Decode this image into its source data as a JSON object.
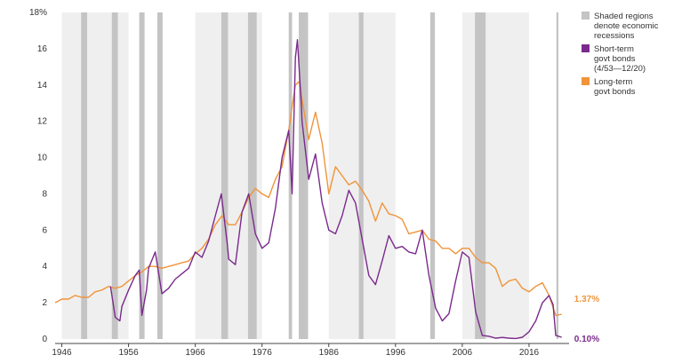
{
  "chart_data": {
    "type": "line",
    "x_axis": {
      "range": [
        1945,
        2022
      ],
      "ticks": [
        1946,
        1956,
        1966,
        1976,
        1986,
        1996,
        2006,
        2016
      ]
    },
    "y_axis": {
      "range": [
        0,
        18
      ],
      "ticks": [
        0,
        2,
        4,
        6,
        8,
        10,
        12,
        14,
        16,
        18
      ],
      "tick_labels": [
        "0",
        "2",
        "4",
        "6",
        "8",
        "10",
        "12",
        "14",
        "16",
        "18%"
      ]
    },
    "grid": false,
    "alternating_decade_bands": [
      [
        1946,
        1956
      ],
      [
        1966,
        1976
      ],
      [
        1986,
        1996
      ],
      [
        2006,
        2016
      ]
    ],
    "colors": {
      "band": "#efefef",
      "recession": "#c4c4c4",
      "short_term": "#7a2a8c",
      "long_term": "#f0943a"
    },
    "legend": {
      "position": "top-right",
      "items": [
        {
          "key": "recession",
          "label_lines": [
            "Shaded regions",
            "denote economic",
            "recessions"
          ]
        },
        {
          "key": "short_term",
          "label_lines": [
            "Short-term",
            "govt bonds",
            "(4/53—12/20)"
          ]
        },
        {
          "key": "long_term",
          "label_lines": [
            "Long-term",
            "govt bonds"
          ]
        }
      ]
    },
    "recessions": [
      [
        1948.9,
        1949.8
      ],
      [
        1953.5,
        1954.4
      ],
      [
        1957.6,
        1958.4
      ],
      [
        1960.3,
        1961.1
      ],
      [
        1969.9,
        1970.9
      ],
      [
        1973.9,
        1975.2
      ],
      [
        1980.0,
        1980.5
      ],
      [
        1981.5,
        1982.9
      ],
      [
        1990.5,
        1991.2
      ],
      [
        2001.2,
        2001.9
      ],
      [
        2007.9,
        2009.5
      ],
      [
        2020.1,
        2020.4
      ]
    ],
    "series": [
      {
        "key": "long_term",
        "end_label": "1.37%",
        "points": [
          [
            1945,
            2.0
          ],
          [
            1946,
            2.2
          ],
          [
            1947,
            2.2
          ],
          [
            1948,
            2.4
          ],
          [
            1949,
            2.3
          ],
          [
            1950,
            2.3
          ],
          [
            1951,
            2.6
          ],
          [
            1952,
            2.7
          ],
          [
            1953,
            2.9
          ],
          [
            1954,
            2.8
          ],
          [
            1955,
            2.9
          ],
          [
            1956,
            3.2
          ],
          [
            1957,
            3.5
          ],
          [
            1958,
            3.7
          ],
          [
            1959,
            4.0
          ],
          [
            1960,
            4.0
          ],
          [
            1961,
            3.9
          ],
          [
            1962,
            4.0
          ],
          [
            1963,
            4.1
          ],
          [
            1964,
            4.2
          ],
          [
            1965,
            4.3
          ],
          [
            1966,
            4.7
          ],
          [
            1967,
            5.0
          ],
          [
            1968,
            5.5
          ],
          [
            1969,
            6.3
          ],
          [
            1970,
            6.8
          ],
          [
            1971,
            6.3
          ],
          [
            1972,
            6.3
          ],
          [
            1973,
            7.0
          ],
          [
            1974,
            7.8
          ],
          [
            1975,
            8.3
          ],
          [
            1976,
            8.0
          ],
          [
            1977,
            7.8
          ],
          [
            1978,
            8.8
          ],
          [
            1979,
            9.5
          ],
          [
            1980,
            11.5
          ],
          [
            1981,
            14.0
          ],
          [
            1981.6,
            14.2
          ],
          [
            1982,
            13.2
          ],
          [
            1983,
            11.0
          ],
          [
            1984,
            12.5
          ],
          [
            1985,
            10.8
          ],
          [
            1986,
            8.0
          ],
          [
            1987,
            9.5
          ],
          [
            1988,
            9.0
          ],
          [
            1989,
            8.5
          ],
          [
            1990,
            8.7
          ],
          [
            1991,
            8.2
          ],
          [
            1992,
            7.6
          ],
          [
            1993,
            6.5
          ],
          [
            1994,
            7.5
          ],
          [
            1995,
            6.9
          ],
          [
            1996,
            6.8
          ],
          [
            1997,
            6.6
          ],
          [
            1998,
            5.8
          ],
          [
            1999,
            5.9
          ],
          [
            2000,
            6.0
          ],
          [
            2001,
            5.5
          ],
          [
            2002,
            5.4
          ],
          [
            2003,
            5.0
          ],
          [
            2004,
            5.0
          ],
          [
            2005,
            4.7
          ],
          [
            2006,
            5.0
          ],
          [
            2007,
            5.0
          ],
          [
            2008,
            4.5
          ],
          [
            2009,
            4.2
          ],
          [
            2010,
            4.2
          ],
          [
            2011,
            3.9
          ],
          [
            2012,
            2.9
          ],
          [
            2013,
            3.2
          ],
          [
            2014,
            3.3
          ],
          [
            2015,
            2.8
          ],
          [
            2016,
            2.6
          ],
          [
            2017,
            2.9
          ],
          [
            2018,
            3.1
          ],
          [
            2019,
            2.4
          ],
          [
            2020,
            1.3
          ],
          [
            2020.9,
            1.37
          ]
        ]
      },
      {
        "key": "short_term",
        "end_label": "0.10%",
        "points": [
          [
            1953.3,
            2.9
          ],
          [
            1954,
            1.2
          ],
          [
            1954.7,
            1.0
          ],
          [
            1955,
            1.8
          ],
          [
            1956,
            2.7
          ],
          [
            1957,
            3.5
          ],
          [
            1957.6,
            3.8
          ],
          [
            1958,
            1.3
          ],
          [
            1958.7,
            2.7
          ],
          [
            1959,
            3.9
          ],
          [
            1960,
            4.8
          ],
          [
            1961,
            2.5
          ],
          [
            1962,
            2.8
          ],
          [
            1963,
            3.3
          ],
          [
            1964,
            3.6
          ],
          [
            1965,
            3.9
          ],
          [
            1966,
            4.8
          ],
          [
            1967,
            4.5
          ],
          [
            1968,
            5.4
          ],
          [
            1969,
            6.8
          ],
          [
            1969.9,
            8.0
          ],
          [
            1970.8,
            5.2
          ],
          [
            1971,
            4.4
          ],
          [
            1972,
            4.1
          ],
          [
            1973,
            7.0
          ],
          [
            1974,
            8.0
          ],
          [
            1975,
            5.8
          ],
          [
            1976,
            5.0
          ],
          [
            1977,
            5.3
          ],
          [
            1978,
            7.2
          ],
          [
            1979,
            10.0
          ],
          [
            1980,
            11.5
          ],
          [
            1980.5,
            8.0
          ],
          [
            1981,
            15.5
          ],
          [
            1981.3,
            16.5
          ],
          [
            1981.9,
            12.8
          ],
          [
            1982,
            12.0
          ],
          [
            1983,
            8.8
          ],
          [
            1984,
            10.2
          ],
          [
            1985,
            7.5
          ],
          [
            1986,
            6.0
          ],
          [
            1987,
            5.8
          ],
          [
            1988,
            6.8
          ],
          [
            1989,
            8.2
          ],
          [
            1990,
            7.5
          ],
          [
            1991,
            5.5
          ],
          [
            1992,
            3.5
          ],
          [
            1993,
            3.0
          ],
          [
            1994,
            4.3
          ],
          [
            1995,
            5.7
          ],
          [
            1996,
            5.0
          ],
          [
            1997,
            5.1
          ],
          [
            1998,
            4.8
          ],
          [
            1999,
            4.7
          ],
          [
            2000,
            6.0
          ],
          [
            2001,
            3.5
          ],
          [
            2002,
            1.7
          ],
          [
            2003,
            1.0
          ],
          [
            2004,
            1.4
          ],
          [
            2005,
            3.2
          ],
          [
            2006,
            4.8
          ],
          [
            2007,
            4.5
          ],
          [
            2008,
            1.5
          ],
          [
            2009,
            0.2
          ],
          [
            2010,
            0.15
          ],
          [
            2011,
            0.05
          ],
          [
            2012,
            0.09
          ],
          [
            2013,
            0.05
          ],
          [
            2014,
            0.03
          ],
          [
            2015,
            0.1
          ],
          [
            2016,
            0.4
          ],
          [
            2017,
            1.0
          ],
          [
            2018,
            2.0
          ],
          [
            2019,
            2.4
          ],
          [
            2019.6,
            1.9
          ],
          [
            2020,
            0.2
          ],
          [
            2020.9,
            0.1
          ]
        ]
      }
    ]
  }
}
